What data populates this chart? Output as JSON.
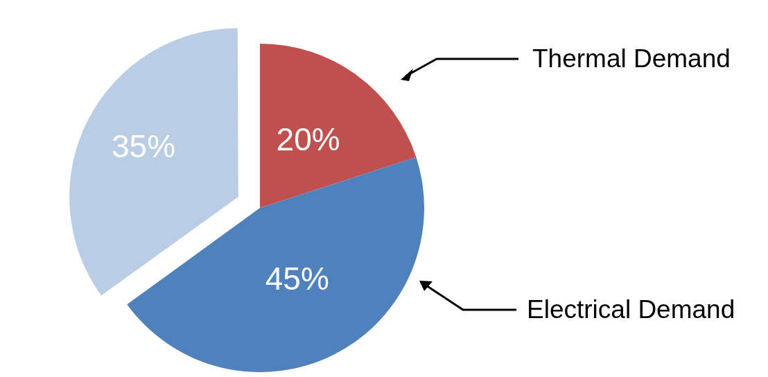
{
  "chart_data": {
    "type": "pie",
    "categories": [
      "Thermal Demand",
      "Electrical Demand",
      null
    ],
    "values": [
      20,
      45,
      35
    ],
    "value_labels": [
      "20%",
      "45%",
      "35%"
    ],
    "colors": [
      "#c0504d",
      "#4f81bd",
      "#b9cde5"
    ],
    "legend": false
  }
}
